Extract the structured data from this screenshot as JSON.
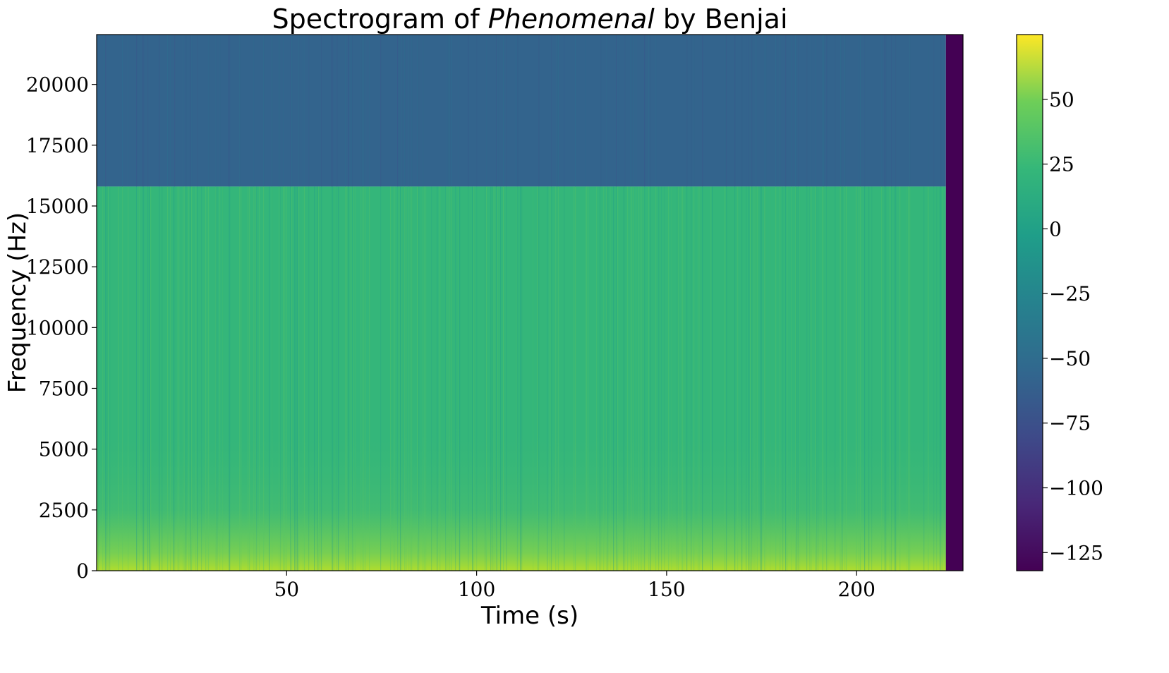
{
  "chart_data": {
    "type": "heatmap",
    "title_parts": {
      "prefix": "Spectrogram of ",
      "italic": "Phenomenal",
      "suffix": " by Benjai"
    },
    "xlabel": "Time (s)",
    "ylabel": "Frequency (Hz)",
    "xlim": [
      0,
      228
    ],
    "ylim": [
      0,
      22050
    ],
    "x_ticks": [
      50,
      100,
      150,
      200
    ],
    "x_tick_labels": [
      "50",
      "100",
      "150",
      "200"
    ],
    "y_ticks": [
      0,
      2500,
      5000,
      7500,
      10000,
      12500,
      15000,
      17500,
      20000
    ],
    "y_tick_labels": [
      "0",
      "2500",
      "5000",
      "7500",
      "10000",
      "12500",
      "15000",
      "17500",
      "20000"
    ],
    "colormap": "viridis",
    "colorbar": {
      "range": [
        -132,
        75
      ],
      "ticks": [
        50,
        25,
        0,
        -25,
        -50,
        -75,
        -100,
        -125
      ],
      "tick_labels": [
        "50",
        "25",
        "0",
        "−25",
        "−50",
        "−75",
        "−100",
        "−125"
      ]
    },
    "regions": {
      "lowpass_cutoff_hz": 15800,
      "signal_end_s": 223.5,
      "below_cutoff_level_db": 22,
      "above_cutoff_level_db": -58,
      "silence_level_db": -132,
      "bass_level_db": 45
    },
    "grid": false
  }
}
